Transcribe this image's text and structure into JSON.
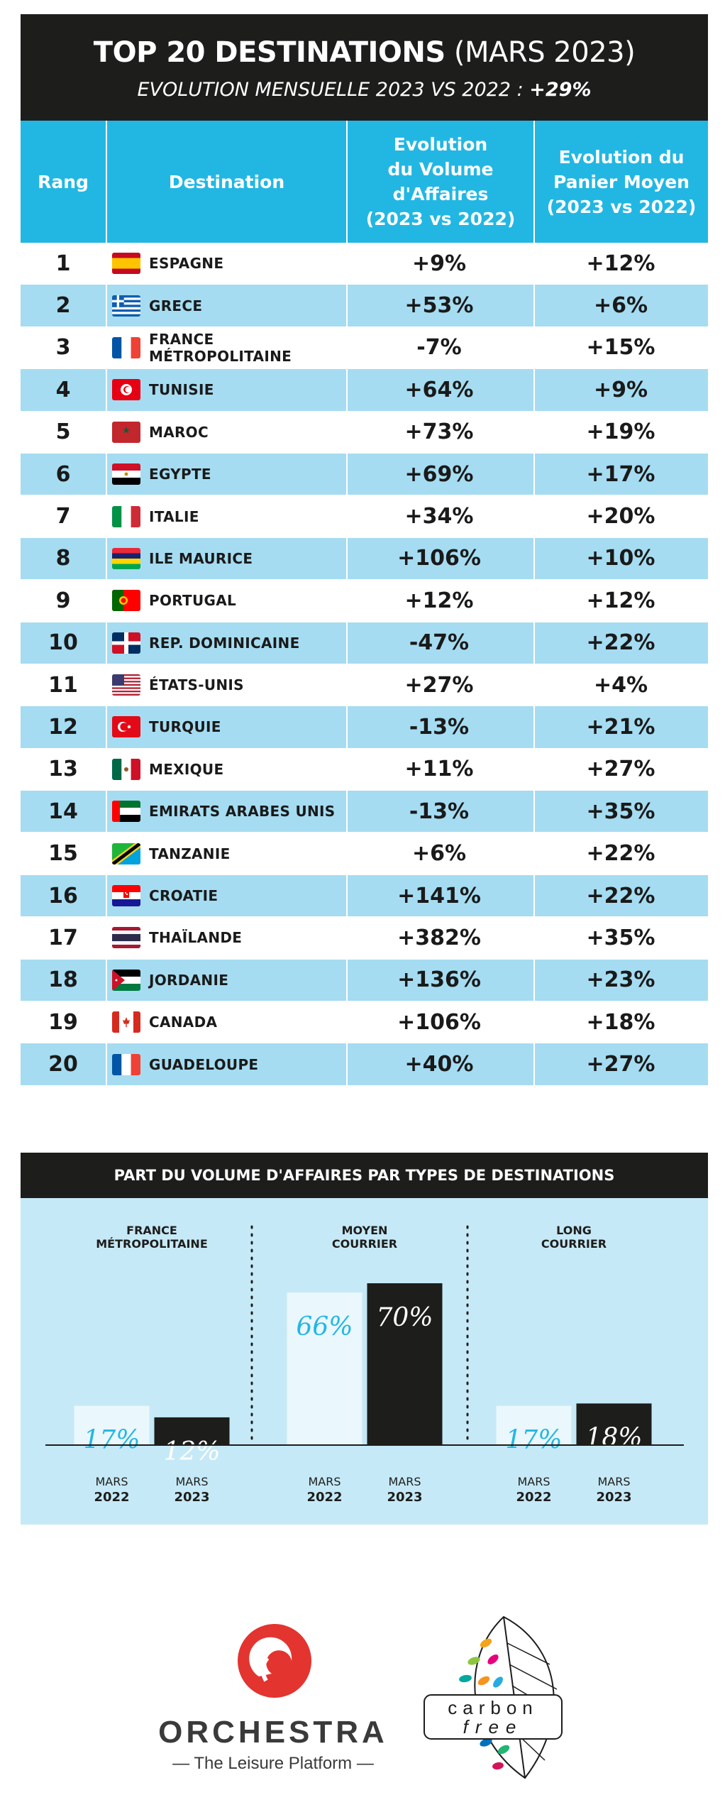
{
  "header": {
    "title_bold": "TOP 20 DESTINATIONS",
    "title_light": "(MARS 2023)",
    "subtitle": "EVOLUTION MENSUELLE 2023 VS 2022 :",
    "subtitle_value": "+29%"
  },
  "table": {
    "col_rank": "Rang",
    "col_dest": "Destination",
    "col_vol": [
      "Evolution",
      "du Volume",
      "d'Affaires",
      "(2023 vs 2022)"
    ],
    "col_pan": [
      "Evolution du",
      "Panier Moyen",
      "(2023 vs 2022)"
    ],
    "rows": [
      {
        "rank": "1",
        "dest": "ESPAGNE",
        "flag": "spain-flag-icon",
        "vol": "+9%",
        "pan": "+12%"
      },
      {
        "rank": "2",
        "dest": "GRECE",
        "flag": "greece-flag-icon",
        "vol": "+53%",
        "pan": "+6%"
      },
      {
        "rank": "3",
        "dest": "FRANCE MÉTROPOLITAINE",
        "flag": "france-flag-icon",
        "vol": "-7%",
        "pan": "+15%"
      },
      {
        "rank": "4",
        "dest": "TUNISIE",
        "flag": "tunisia-flag-icon",
        "vol": "+64%",
        "pan": "+9%"
      },
      {
        "rank": "5",
        "dest": "MAROC",
        "flag": "morocco-flag-icon",
        "vol": "+73%",
        "pan": "+19%"
      },
      {
        "rank": "6",
        "dest": "EGYPTE",
        "flag": "egypt-flag-icon",
        "vol": "+69%",
        "pan": "+17%"
      },
      {
        "rank": "7",
        "dest": "ITALIE",
        "flag": "italy-flag-icon",
        "vol": "+34%",
        "pan": "+20%"
      },
      {
        "rank": "8",
        "dest": "ILE MAURICE",
        "flag": "mauritius-flag-icon",
        "vol": "+106%",
        "pan": "+10%"
      },
      {
        "rank": "9",
        "dest": "PORTUGAL",
        "flag": "portugal-flag-icon",
        "vol": "+12%",
        "pan": "+12%"
      },
      {
        "rank": "10",
        "dest": "REP. DOMINICAINE",
        "flag": "dominican-republic-flag-icon",
        "vol": "-47%",
        "pan": "+22%"
      },
      {
        "rank": "11",
        "dest": "ÉTATS-UNIS",
        "flag": "usa-flag-icon",
        "vol": "+27%",
        "pan": "+4%"
      },
      {
        "rank": "12",
        "dest": "TURQUIE",
        "flag": "turkey-flag-icon",
        "vol": "-13%",
        "pan": "+21%"
      },
      {
        "rank": "13",
        "dest": "MEXIQUE",
        "flag": "mexico-flag-icon",
        "vol": "+11%",
        "pan": "+27%"
      },
      {
        "rank": "14",
        "dest": "EMIRATS ARABES UNIS",
        "flag": "uae-flag-icon",
        "vol": "-13%",
        "pan": "+35%"
      },
      {
        "rank": "15",
        "dest": "TANZANIE",
        "flag": "tanzania-flag-icon",
        "vol": "+6%",
        "pan": "+22%"
      },
      {
        "rank": "16",
        "dest": "CROATIE",
        "flag": "croatia-flag-icon",
        "vol": "+141%",
        "pan": "+22%"
      },
      {
        "rank": "17",
        "dest": "THAÏLANDE",
        "flag": "thailand-flag-icon",
        "vol": "+382%",
        "pan": "+35%"
      },
      {
        "rank": "18",
        "dest": "JORDANIE",
        "flag": "jordan-flag-icon",
        "vol": "+136%",
        "pan": "+23%"
      },
      {
        "rank": "19",
        "dest": "CANADA",
        "flag": "canada-flag-icon",
        "vol": "+106%",
        "pan": "+18%"
      },
      {
        "rank": "20",
        "dest": "GUADELOUPE",
        "flag": "guadeloupe-flag-icon",
        "vol": "+40%",
        "pan": "+27%"
      }
    ]
  },
  "chart_section": {
    "title": "PART DU VOLUME D'AFFAIRES PAR TYPES DE DESTINATIONS"
  },
  "chart_data": {
    "type": "bar",
    "title": "PART DU VOLUME D'AFFAIRES PAR TYPES DE DESTINATIONS",
    "groups": [
      {
        "name_lines": [
          "FRANCE",
          "MÉTROPOLITAINE"
        ]
      },
      {
        "name_lines": [
          "MOYEN",
          "COURRIER"
        ]
      },
      {
        "name_lines": [
          "LONG",
          "COURRIER"
        ]
      }
    ],
    "categories": [
      "FRANCE MÉTROPOLITAINE",
      "MOYEN COURRIER",
      "LONG COURRIER"
    ],
    "series": [
      {
        "label_top": "MARS",
        "label_bottom": "2022",
        "values": [
          17,
          66,
          17
        ],
        "color": "#eaf7fc",
        "text_color": "#22b7e3"
      },
      {
        "label_top": "MARS",
        "label_bottom": "2023",
        "values": [
          12,
          70,
          18
        ],
        "color": "#1d1d1b",
        "text_color": "#ffffff"
      }
    ],
    "unit": "%",
    "ylim": [
      0,
      70
    ]
  },
  "logos": {
    "orchestra_name": "ORCHESTRA",
    "orchestra_tagline": "— The Leisure Platform —",
    "carbon_top": "carbon",
    "carbon_bottom": "free"
  },
  "colors": {
    "accent": "#22b7e3",
    "row_alt": "#a5dcf1",
    "dark": "#1d1d1b",
    "chart_bg": "#c6e9f7",
    "brand_red": "#e3342f"
  }
}
